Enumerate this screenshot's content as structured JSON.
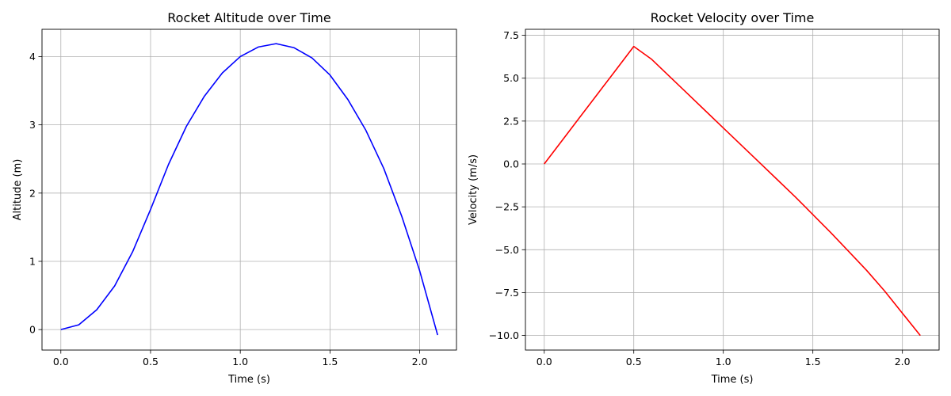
{
  "chart_data": [
    {
      "type": "line",
      "title": "Rocket Altitude over Time",
      "xlabel": "Time (s)",
      "ylabel": "Altitude (m)",
      "xlim": [
        -0.105,
        2.205
      ],
      "ylim": [
        -0.3,
        4.4
      ],
      "xticks": [
        0.0,
        0.5,
        1.0,
        1.5,
        2.0
      ],
      "xtick_labels": [
        "0.0",
        "0.5",
        "1.0",
        "1.5",
        "2.0"
      ],
      "yticks": [
        0,
        1,
        2,
        3,
        4
      ],
      "ytick_labels": [
        "0",
        "1",
        "2",
        "3",
        "4"
      ],
      "grid": true,
      "color": "#0000ff",
      "series": [
        {
          "x": [
            0.0,
            0.1,
            0.2,
            0.3,
            0.4,
            0.5,
            0.6,
            0.7,
            0.8,
            0.9,
            1.0,
            1.1,
            1.2,
            1.3,
            1.4,
            1.5,
            1.6,
            1.7,
            1.8,
            1.9,
            2.0,
            2.1
          ],
          "values": [
            0.0,
            0.07,
            0.29,
            0.64,
            1.14,
            1.76,
            2.42,
            2.98,
            3.42,
            3.76,
            4.0,
            4.14,
            4.19,
            4.13,
            3.98,
            3.73,
            3.37,
            2.92,
            2.36,
            1.66,
            0.86,
            -0.08
          ]
        }
      ]
    },
    {
      "type": "line",
      "title": "Rocket Velocity over Time",
      "xlabel": "Time (s)",
      "ylabel": "Velocity (m/s)",
      "xlim": [
        -0.105,
        2.205
      ],
      "ylim": [
        -10.85,
        7.85
      ],
      "xticks": [
        0.0,
        0.5,
        1.0,
        1.5,
        2.0
      ],
      "xtick_labels": [
        "0.0",
        "0.5",
        "1.0",
        "1.5",
        "2.0"
      ],
      "yticks": [
        -10.0,
        -7.5,
        -5.0,
        -2.5,
        0.0,
        2.5,
        5.0,
        7.5
      ],
      "ytick_labels": [
        "−10.0",
        "−7.5",
        "−5.0",
        "−2.5",
        "0.0",
        "2.5",
        "5.0",
        "7.5"
      ],
      "grid": true,
      "color": "#ff0000",
      "series": [
        {
          "x": [
            0.0,
            0.1,
            0.2,
            0.3,
            0.4,
            0.5,
            0.6,
            0.7,
            0.8,
            0.9,
            1.0,
            1.1,
            1.2,
            1.3,
            1.4,
            1.5,
            1.6,
            1.7,
            1.8,
            1.9,
            2.0,
            2.1
          ],
          "values": [
            0.0,
            1.37,
            2.74,
            4.11,
            5.48,
            6.85,
            6.1,
            5.1,
            4.1,
            3.1,
            2.1,
            1.1,
            0.1,
            -0.9,
            -1.9,
            -2.95,
            -4.0,
            -5.1,
            -6.2,
            -7.4,
            -8.7,
            -10.0
          ]
        }
      ]
    }
  ]
}
